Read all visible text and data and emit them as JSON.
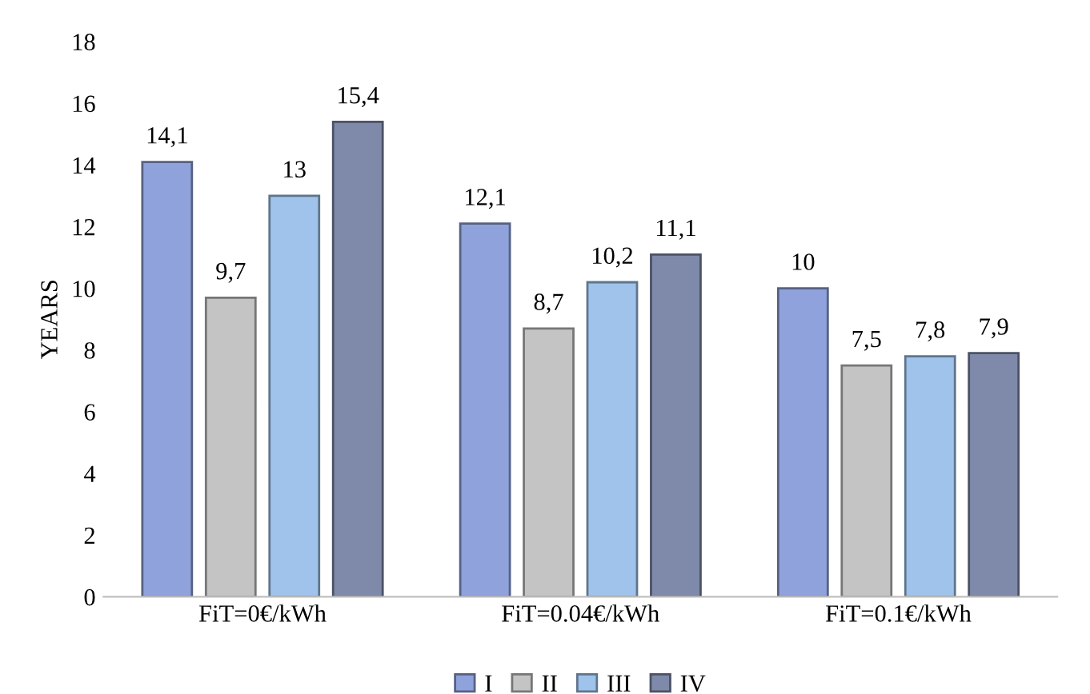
{
  "chart_data": {
    "type": "bar",
    "ylabel": "YEARS",
    "categories": [
      "FiT=0€/kWh",
      "FiT=0.04€/kWh",
      "FiT=0.1€/kWh"
    ],
    "series": [
      {
        "name": "I",
        "color": "#8fa2db",
        "values": [
          14.1,
          12.1,
          10
        ],
        "value_labels": [
          "14,1",
          "12,1",
          "10"
        ]
      },
      {
        "name": "II",
        "color": "#c4c4c4",
        "values": [
          9.7,
          8.7,
          7.5
        ],
        "value_labels": [
          "9,7",
          "8,7",
          "7,5"
        ]
      },
      {
        "name": "III",
        "color": "#9fc3ea",
        "values": [
          13,
          10.2,
          7.8
        ],
        "value_labels": [
          "13",
          "10,2",
          "7,8"
        ]
      },
      {
        "name": "IV",
        "color": "#7f89a9",
        "values": [
          15.4,
          11.1,
          7.9
        ],
        "value_labels": [
          "15,4",
          "11,1",
          "7,9"
        ]
      }
    ],
    "ylim": [
      0,
      18
    ],
    "yticks": [
      0,
      2,
      4,
      6,
      8,
      10,
      12,
      14,
      16,
      18
    ],
    "grid": false,
    "legend": "bottom"
  }
}
